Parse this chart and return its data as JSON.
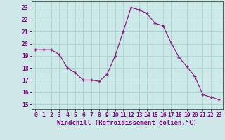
{
  "x": [
    0,
    1,
    2,
    3,
    4,
    5,
    6,
    7,
    8,
    9,
    10,
    11,
    12,
    13,
    14,
    15,
    16,
    17,
    18,
    19,
    20,
    21,
    22,
    23
  ],
  "y": [
    19.5,
    19.5,
    19.5,
    19.1,
    18.0,
    17.6,
    17.0,
    17.0,
    16.9,
    17.5,
    19.0,
    21.0,
    23.0,
    22.8,
    22.5,
    21.7,
    21.5,
    20.1,
    18.9,
    18.1,
    17.3,
    15.8,
    15.6,
    15.4
  ],
  "line_color": "#8B2085",
  "marker": "+",
  "bg_color": "#cce9e8",
  "grid_color": "#a8d4d4",
  "xlabel": "Windchill (Refroidissement éolien,°C)",
  "xlabel_fontsize": 6.5,
  "ylabel_ticks": [
    15,
    16,
    17,
    18,
    19,
    20,
    21,
    22,
    23
  ],
  "xlim": [
    -0.5,
    23.5
  ],
  "ylim": [
    14.6,
    23.5
  ],
  "tick_fontsize": 5.8,
  "line_width": 0.9,
  "marker_size": 3.0
}
